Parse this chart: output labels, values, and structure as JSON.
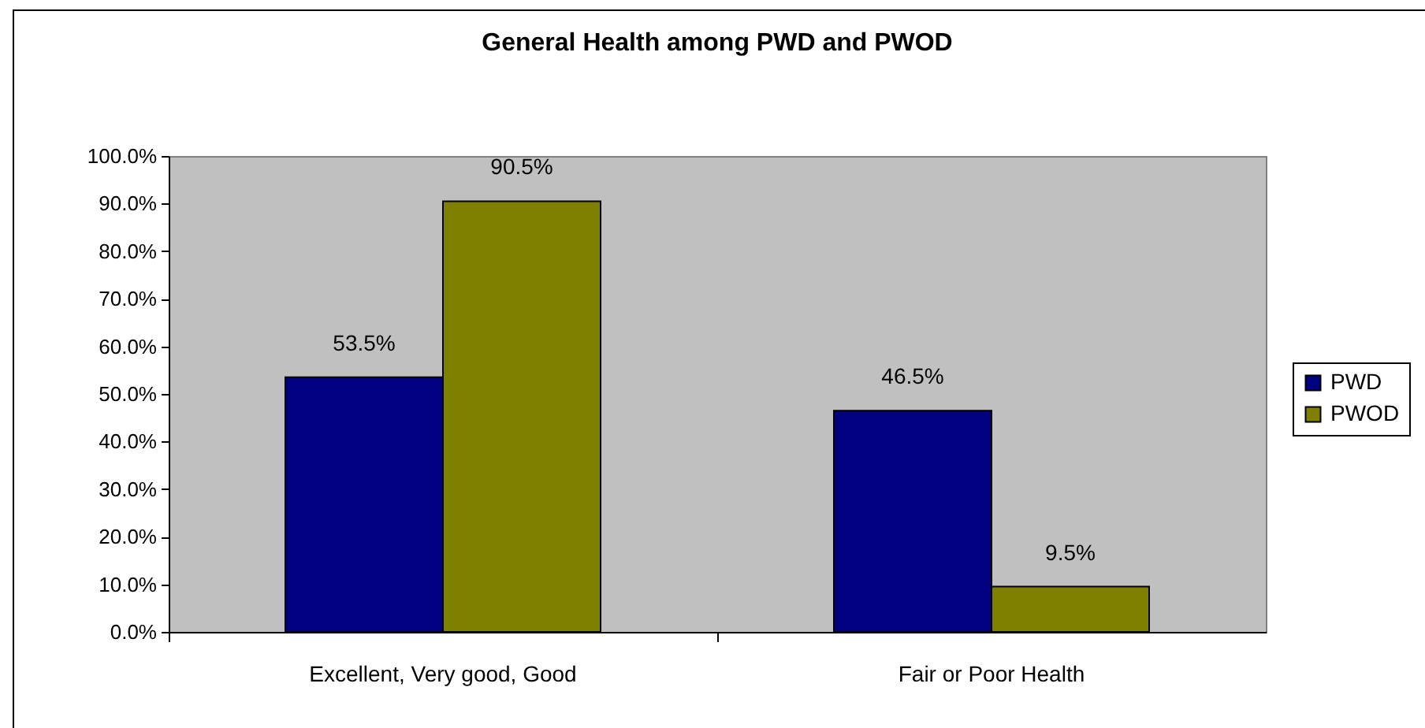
{
  "chart_data": {
    "type": "bar",
    "title": "General Health among PWD and PWOD",
    "categories": [
      "Excellent, Very good, Good",
      "Fair or Poor Health"
    ],
    "series": [
      {
        "name": "PWD",
        "color": "#000080",
        "values": [
          53.5,
          46.5
        ],
        "value_labels": [
          "53.5%",
          "46.5%"
        ]
      },
      {
        "name": "PWOD",
        "color": "#808000",
        "values": [
          90.5,
          9.5
        ],
        "value_labels": [
          "90.5%",
          "9.5%"
        ]
      }
    ],
    "ylim": [
      0,
      100
    ],
    "yticks": [
      {
        "value": 0,
        "label": "0.0%"
      },
      {
        "value": 10,
        "label": "10.0%"
      },
      {
        "value": 20,
        "label": "20.0%"
      },
      {
        "value": 30,
        "label": "30.0%"
      },
      {
        "value": 40,
        "label": "40.0%"
      },
      {
        "value": 50,
        "label": "50.0%"
      },
      {
        "value": 60,
        "label": "60.0%"
      },
      {
        "value": 70,
        "label": "70.0%"
      },
      {
        "value": 80,
        "label": "80.0%"
      },
      {
        "value": 90,
        "label": "90.0%"
      },
      {
        "value": 100,
        "label": "100.0%"
      }
    ],
    "legend": "right"
  }
}
